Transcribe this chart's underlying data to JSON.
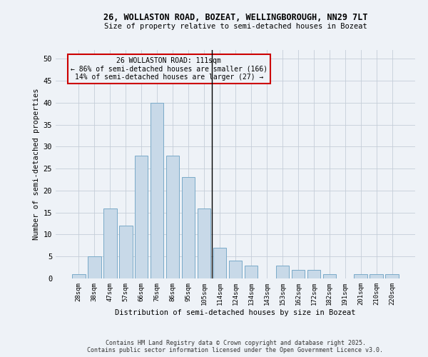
{
  "title1": "26, WOLLASTON ROAD, BOZEAT, WELLINGBOROUGH, NN29 7LT",
  "title2": "Size of property relative to semi-detached houses in Bozeat",
  "xlabel": "Distribution of semi-detached houses by size in Bozeat",
  "ylabel": "Number of semi-detached properties",
  "categories": [
    "28sqm",
    "38sqm",
    "47sqm",
    "57sqm",
    "66sqm",
    "76sqm",
    "86sqm",
    "95sqm",
    "105sqm",
    "114sqm",
    "124sqm",
    "134sqm",
    "143sqm",
    "153sqm",
    "162sqm",
    "172sqm",
    "182sqm",
    "191sqm",
    "201sqm",
    "210sqm",
    "220sqm"
  ],
  "values": [
    1,
    5,
    16,
    12,
    28,
    40,
    28,
    23,
    16,
    7,
    4,
    3,
    0,
    3,
    2,
    2,
    1,
    0,
    1,
    1,
    1
  ],
  "bar_color": "#c8d9e8",
  "bar_edge_color": "#7aaac8",
  "vline_x_idx": 8.5,
  "annotation_title": "26 WOLLASTON ROAD: 111sqm",
  "annotation_line1": "← 86% of semi-detached houses are smaller (166)",
  "annotation_line2": "14% of semi-detached houses are larger (27) →",
  "ylim": [
    0,
    52
  ],
  "yticks": [
    0,
    5,
    10,
    15,
    20,
    25,
    30,
    35,
    40,
    45,
    50
  ],
  "footer1": "Contains HM Land Registry data © Crown copyright and database right 2025.",
  "footer2": "Contains public sector information licensed under the Open Government Licence v3.0.",
  "bg_color": "#eef2f7",
  "annotation_box_color": "#cc0000",
  "grid_color": "#c5cdd8"
}
